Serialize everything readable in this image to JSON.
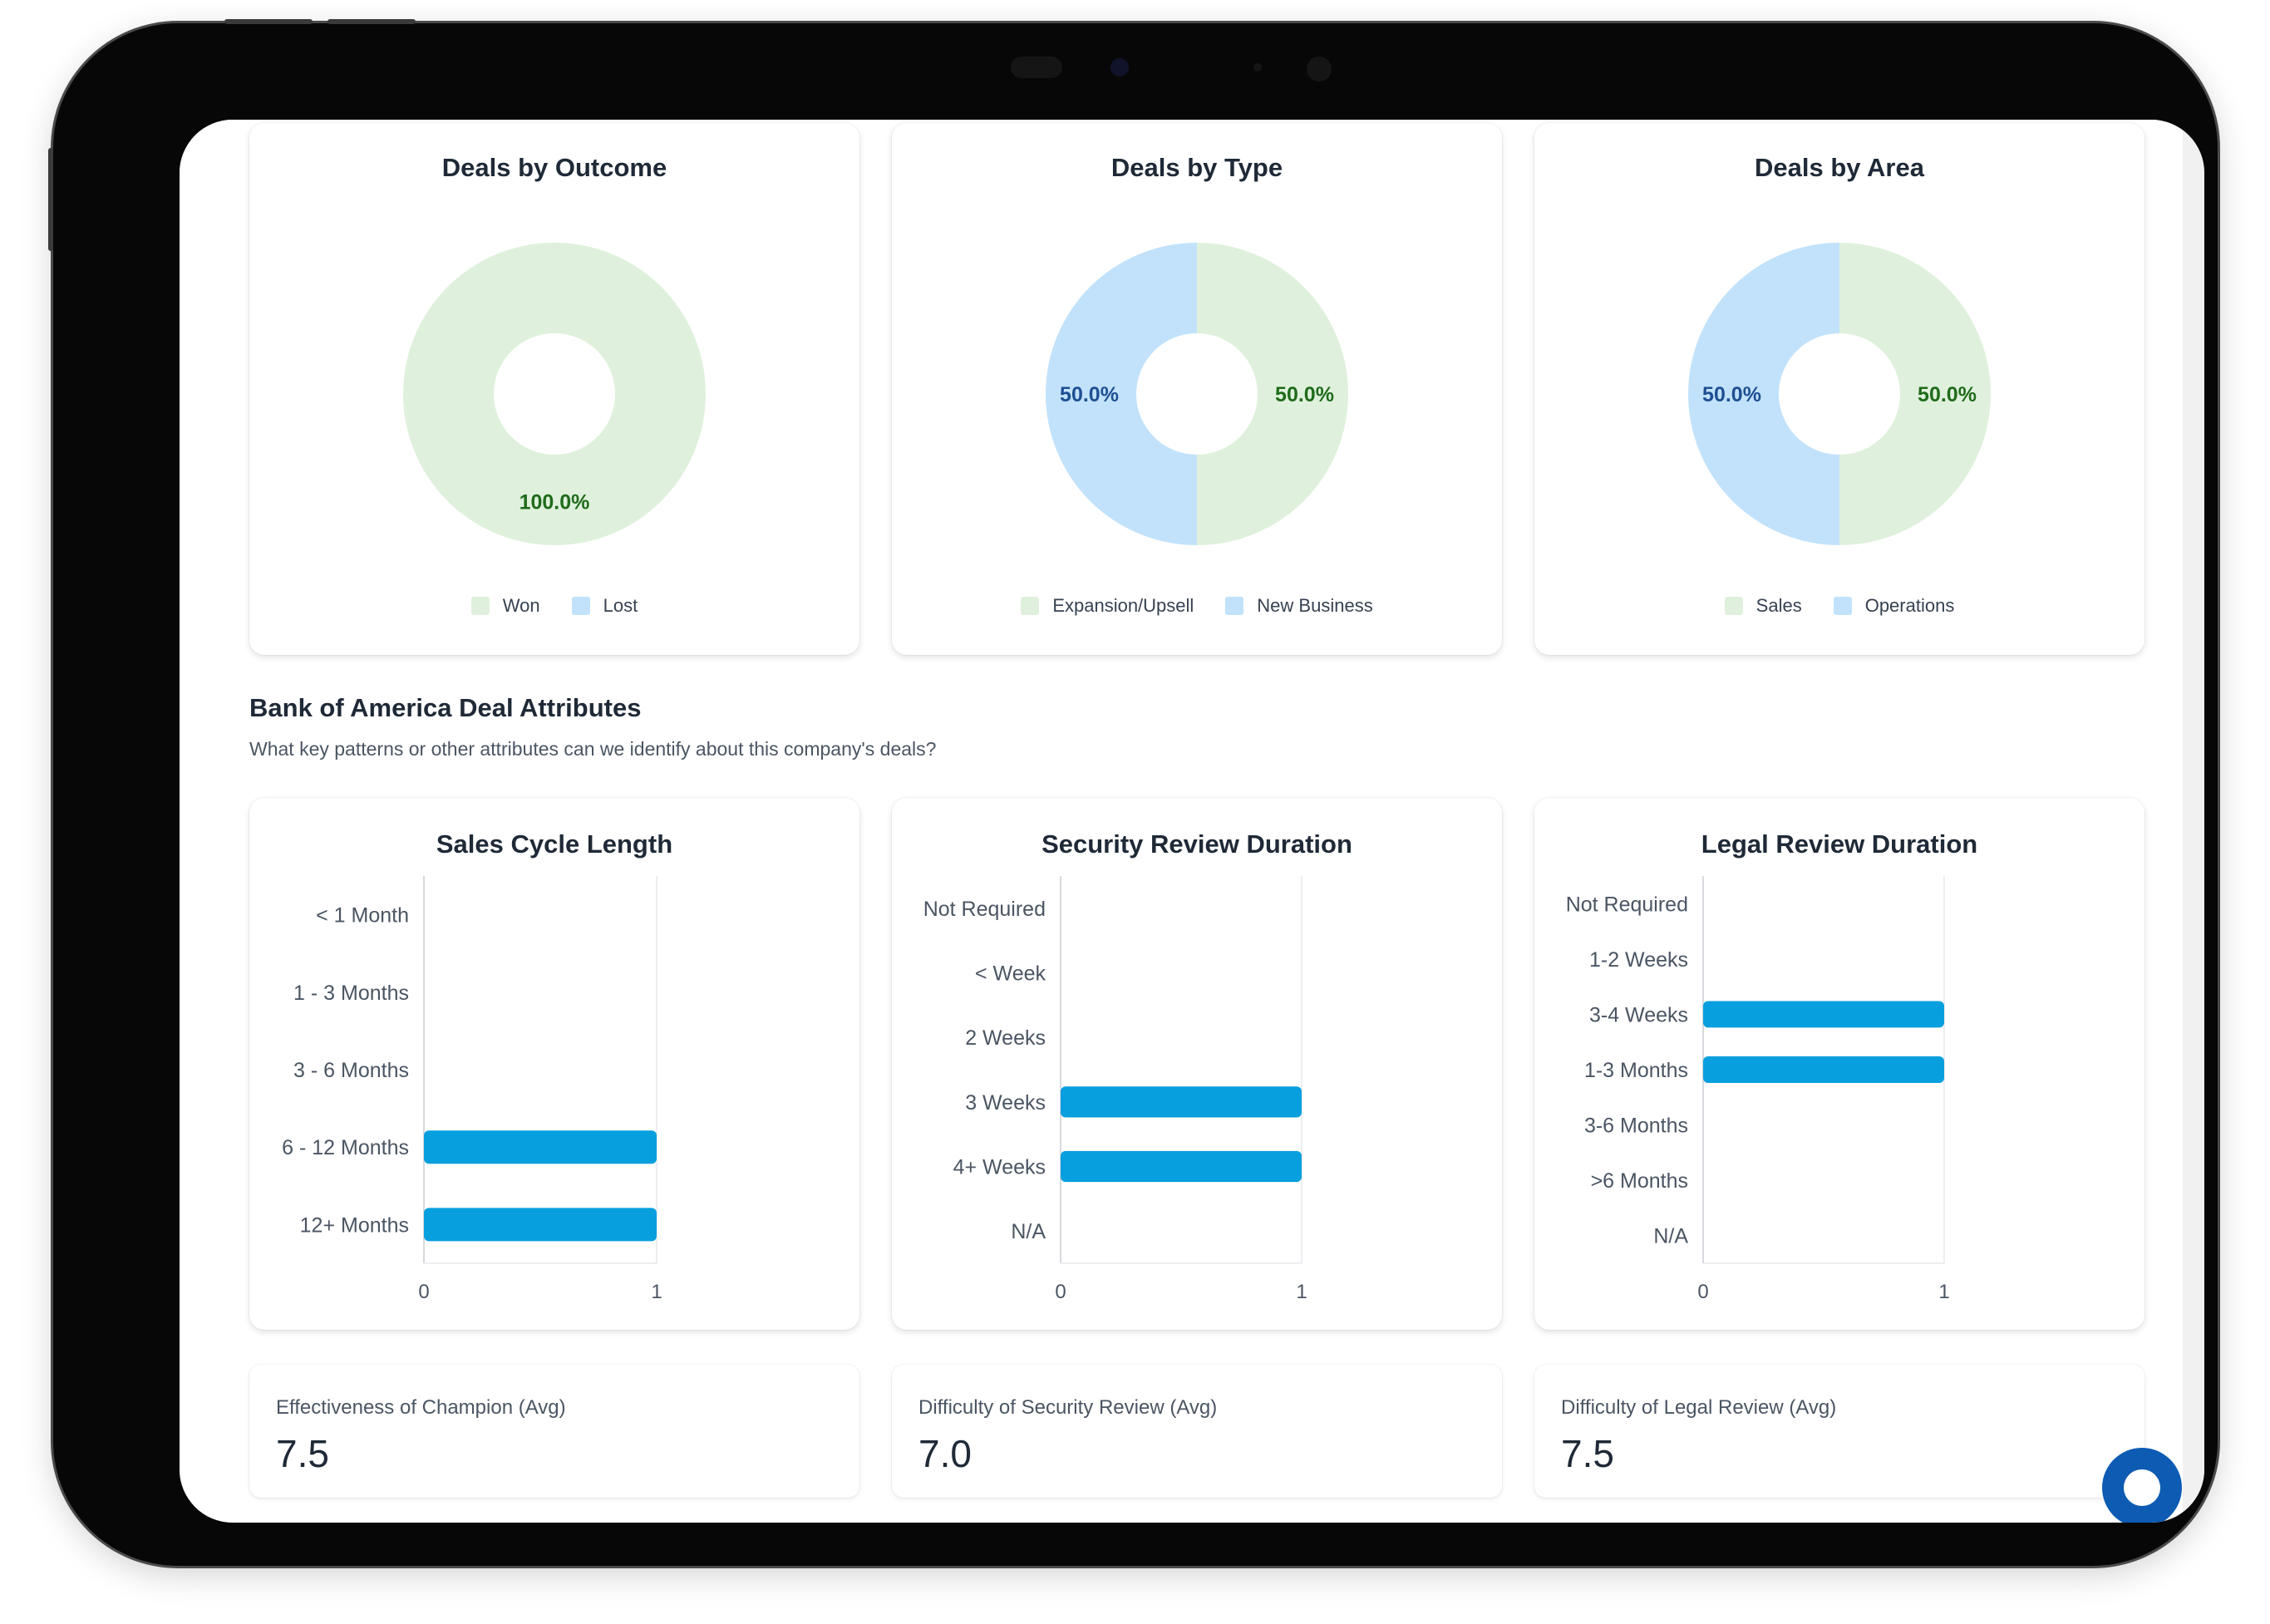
{
  "colors": {
    "accent_bar": "#089fde",
    "pie_green": "#dff1dc",
    "pie_blue": "#c2e2fb",
    "label_green": "#1f6b1a",
    "label_blue": "#1d4f91",
    "fab": "#0d5bb3"
  },
  "pies": [
    {
      "chart_data": {
        "type": "pie",
        "title": "Deals by Outcome",
        "categories": [
          "Won",
          "Lost"
        ],
        "values": [
          100,
          0
        ],
        "labels": [
          "100.0%",
          ""
        ],
        "legend_position": "bottom"
      }
    },
    {
      "chart_data": {
        "type": "pie",
        "title": "Deals by Type",
        "categories": [
          "Expansion/Upsell",
          "New Business"
        ],
        "values": [
          50,
          50
        ],
        "labels": [
          "50.0%",
          "50.0%"
        ],
        "legend_position": "bottom"
      }
    },
    {
      "chart_data": {
        "type": "pie",
        "title": "Deals by Area",
        "categories": [
          "Sales",
          "Operations"
        ],
        "values": [
          50,
          50
        ],
        "labels": [
          "50.0%",
          "50.0%"
        ],
        "legend_position": "bottom"
      }
    }
  ],
  "section": {
    "title": "Bank of America Deal Attributes",
    "subtitle": "What key patterns or other attributes can we identify about this company's deals?"
  },
  "bars": [
    {
      "chart_data": {
        "type": "bar",
        "orientation": "horizontal",
        "title": "Sales Cycle Length",
        "categories": [
          "< 1 Month",
          "1 - 3 Months",
          "3 - 6 Months",
          "6 - 12 Months",
          "12+ Months"
        ],
        "values": [
          0,
          0,
          0,
          1,
          1
        ],
        "xlim": [
          0,
          1
        ],
        "xticks": [
          "0",
          "1"
        ]
      }
    },
    {
      "chart_data": {
        "type": "bar",
        "orientation": "horizontal",
        "title": "Security Review Duration",
        "categories": [
          "Not Required",
          "< Week",
          "2 Weeks",
          "3 Weeks",
          "4+ Weeks",
          "N/A"
        ],
        "values": [
          0,
          0,
          0,
          1,
          1,
          0
        ],
        "xlim": [
          0,
          1
        ],
        "xticks": [
          "0",
          "1"
        ]
      }
    },
    {
      "chart_data": {
        "type": "bar",
        "orientation": "horizontal",
        "title": "Legal Review Duration",
        "categories": [
          "Not Required",
          "1-2 Weeks",
          "3-4 Weeks",
          "1-3 Months",
          "3-6 Months",
          ">6 Months",
          "N/A"
        ],
        "values": [
          0,
          0,
          1,
          1,
          0,
          0,
          0
        ],
        "xlim": [
          0,
          1
        ],
        "xticks": [
          "0",
          "1"
        ]
      }
    }
  ],
  "stats": [
    {
      "label": "Effectiveness of Champion (Avg)",
      "value": "7.5"
    },
    {
      "label": "Difficulty of Security Review (Avg)",
      "value": "7.0"
    },
    {
      "label": "Difficulty of Legal Review (Avg)",
      "value": "7.5"
    }
  ],
  "icons": {
    "fab": "chat-icon"
  }
}
